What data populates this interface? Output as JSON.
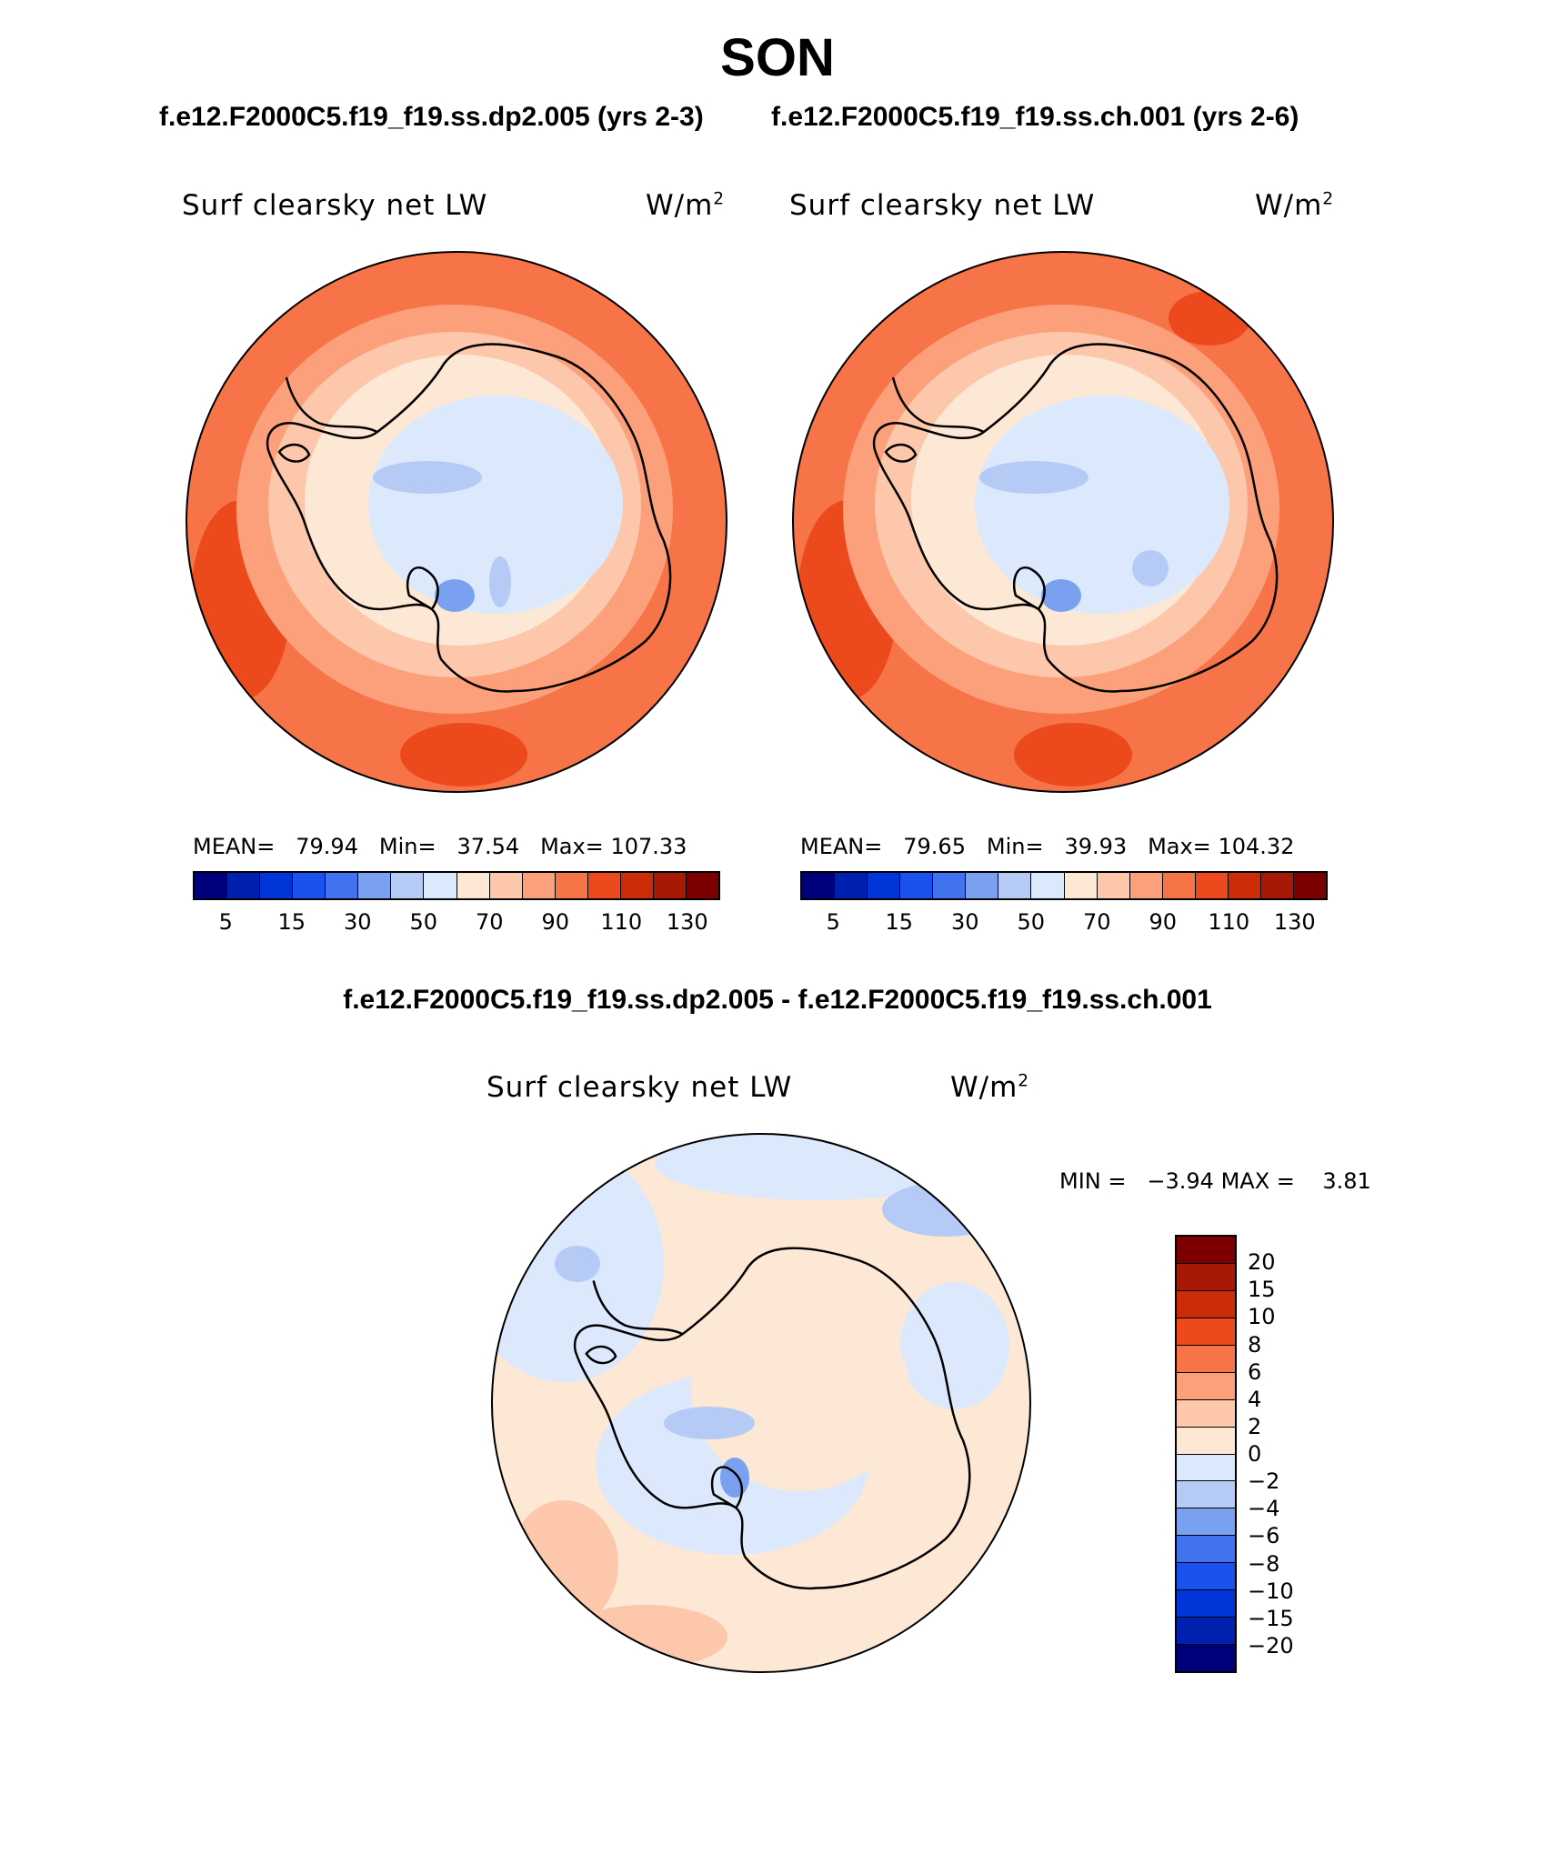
{
  "title": "SON",
  "panels": [
    {
      "header": "f.e12.F2000C5.f19_f19.ss.dp2.005 (yrs 2-3)",
      "variable": "Surf clearsky net LW",
      "units": "W/m",
      "units_exp": "2",
      "stats": {
        "mean_label": "MEAN=",
        "mean": "79.94",
        "min_label": "Min=",
        "min": "37.54",
        "max_label": "Max=",
        "max": "107.33"
      }
    },
    {
      "header": "f.e12.F2000C5.f19_f19.ss.ch.001 (yrs 2-6)",
      "variable": "Surf clearsky net LW",
      "units": "W/m",
      "units_exp": "2",
      "stats": {
        "mean_label": "MEAN=",
        "mean": "79.65",
        "min_label": "Min=",
        "min": "39.93",
        "max_label": "Max=",
        "max": "104.32"
      }
    }
  ],
  "diff": {
    "header": "f.e12.F2000C5.f19_f19.ss.dp2.005 - f.e12.F2000C5.f19_f19.ss.ch.001",
    "variable": "Surf clearsky net LW",
    "units": "W/m",
    "units_exp": "2",
    "minmax": {
      "min_label": "MIN =",
      "min": "−3.94",
      "max_label": "MAX =",
      "max": "3.81"
    }
  },
  "colorbar_main": {
    "colors": [
      "#00007a",
      "#0020b0",
      "#0035d8",
      "#1a52f0",
      "#4273ee",
      "#7aa0f0",
      "#b5cbf6",
      "#dce9fc",
      "#fde7d5",
      "#fcc7ab",
      "#fba07a",
      "#f77448",
      "#ec4a1c",
      "#cc2c08",
      "#a81806",
      "#7d0000"
    ],
    "tick_labels": [
      "5",
      "15",
      "30",
      "50",
      "70",
      "90",
      "110",
      "130"
    ]
  },
  "colorbar_diff": {
    "colors_top_to_bottom": [
      "#7d0000",
      "#a81806",
      "#cc2c08",
      "#ec4a1c",
      "#f77448",
      "#fba07a",
      "#fcc7ab",
      "#fde7d5",
      "#dce9fc",
      "#b5cbf6",
      "#7aa0f0",
      "#4273ee",
      "#1a52f0",
      "#0035d8",
      "#0020b0",
      "#00007a"
    ],
    "tick_labels": [
      "20",
      "15",
      "10",
      "8",
      "6",
      "4",
      "2",
      "0",
      "−2",
      "−4",
      "−6",
      "−8",
      "−10",
      "−15",
      "−20"
    ]
  },
  "map_colors": {
    "deep_orange": "#f77448",
    "red_orange": "#ec4a1c",
    "salmon": "#fba07a",
    "peach": "#fcc7ab",
    "pale_peach": "#fde7d5",
    "pale_blue": "#dce9fc",
    "light_blue": "#b5cbf6",
    "mid_blue": "#7aa0f0"
  }
}
